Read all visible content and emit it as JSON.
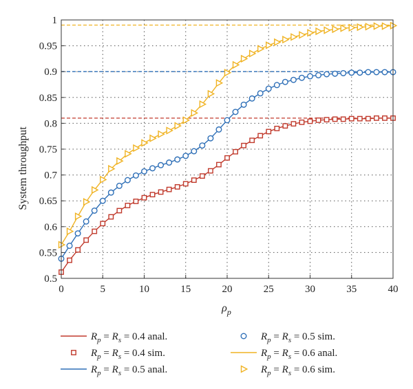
{
  "chart_data": {
    "type": "line",
    "xlabel": "ρ",
    "xlabel_sub": "p",
    "ylabel": "System throughput",
    "xlim": [
      0,
      40
    ],
    "ylim": [
      0.5,
      1.0
    ],
    "xticks": [
      0,
      5,
      10,
      15,
      20,
      25,
      30,
      35,
      40
    ],
    "xtick_labels": [
      "0",
      "5",
      "10",
      "15",
      "20",
      "25",
      "30",
      "35",
      "40"
    ],
    "yticks": [
      0.5,
      0.55,
      0.6,
      0.65,
      0.7,
      0.75,
      0.8,
      0.85,
      0.9,
      0.95,
      1.0
    ],
    "ytick_labels": [
      "0.5",
      "0.55",
      "0.6",
      "0.65",
      "0.7",
      "0.75",
      "0.8",
      "0.85",
      "0.9",
      "0.95",
      "1"
    ],
    "grid": true,
    "x": [
      0,
      1,
      2,
      3,
      4,
      5,
      6,
      7,
      8,
      9,
      10,
      11,
      12,
      13,
      14,
      15,
      16,
      17,
      18,
      19,
      20,
      21,
      22,
      23,
      24,
      25,
      26,
      27,
      28,
      29,
      30,
      31,
      32,
      33,
      34,
      35,
      36,
      37,
      38,
      39,
      40
    ],
    "asymptotes": [
      {
        "y": 0.81,
        "color": "#c0392b"
      },
      {
        "y": 0.9,
        "color": "#2e6fb7"
      },
      {
        "y": 0.99,
        "color": "#f0b323"
      }
    ],
    "series": [
      {
        "color": "#c0392b",
        "marker": "square",
        "values": [
          0.512,
          0.535,
          0.555,
          0.574,
          0.591,
          0.606,
          0.619,
          0.631,
          0.641,
          0.649,
          0.656,
          0.662,
          0.667,
          0.672,
          0.677,
          0.683,
          0.69,
          0.698,
          0.708,
          0.72,
          0.733,
          0.745,
          0.757,
          0.767,
          0.776,
          0.784,
          0.79,
          0.795,
          0.799,
          0.802,
          0.804,
          0.806,
          0.807,
          0.808,
          0.808,
          0.809,
          0.809,
          0.809,
          0.81,
          0.81,
          0.81
        ]
      },
      {
        "color": "#2e6fb7",
        "marker": "circle",
        "values": [
          0.538,
          0.563,
          0.587,
          0.61,
          0.631,
          0.65,
          0.666,
          0.679,
          0.69,
          0.699,
          0.707,
          0.713,
          0.719,
          0.724,
          0.73,
          0.737,
          0.746,
          0.757,
          0.771,
          0.788,
          0.806,
          0.822,
          0.836,
          0.848,
          0.858,
          0.867,
          0.874,
          0.88,
          0.884,
          0.888,
          0.891,
          0.893,
          0.895,
          0.896,
          0.897,
          0.898,
          0.898,
          0.899,
          0.899,
          0.899,
          0.899
        ]
      },
      {
        "color": "#f0b323",
        "marker": "triangle-right",
        "values": [
          0.565,
          0.591,
          0.62,
          0.648,
          0.671,
          0.691,
          0.712,
          0.727,
          0.741,
          0.752,
          0.762,
          0.771,
          0.779,
          0.786,
          0.795,
          0.806,
          0.82,
          0.837,
          0.857,
          0.878,
          0.898,
          0.913,
          0.925,
          0.935,
          0.944,
          0.951,
          0.957,
          0.962,
          0.967,
          0.971,
          0.975,
          0.978,
          0.98,
          0.982,
          0.984,
          0.985,
          0.986,
          0.987,
          0.988,
          0.988,
          0.989
        ]
      }
    ],
    "legend": {
      "placement": "bottom",
      "entries": [
        {
          "series": 0,
          "kind": "line",
          "var1": "R",
          "sub1": "p",
          "eq1": "=",
          "var2": "R",
          "sub2": "s",
          "value": "= 0.4 anal."
        },
        {
          "series": 1,
          "kind": "marker",
          "var1": "R",
          "sub1": "p",
          "eq1": "=",
          "var2": "R",
          "sub2": "s",
          "value": "= 0.5 sim."
        },
        {
          "series": 0,
          "kind": "marker",
          "var1": "R",
          "sub1": "p",
          "eq1": "=",
          "var2": "R",
          "sub2": "s",
          "value": "= 0.4 sim."
        },
        {
          "series": 2,
          "kind": "line",
          "var1": "R",
          "sub1": "p",
          "eq1": "=",
          "var2": "R",
          "sub2": "s",
          "value": "= 0.6 anal."
        },
        {
          "series": 1,
          "kind": "line",
          "var1": "R",
          "sub1": "p",
          "eq1": "=",
          "var2": "R",
          "sub2": "s",
          "value": "= 0.5 anal."
        },
        {
          "series": 2,
          "kind": "marker",
          "var1": "R",
          "sub1": "p",
          "eq1": "=",
          "var2": "R",
          "sub2": "s",
          "value": "= 0.6 sim."
        }
      ]
    }
  }
}
